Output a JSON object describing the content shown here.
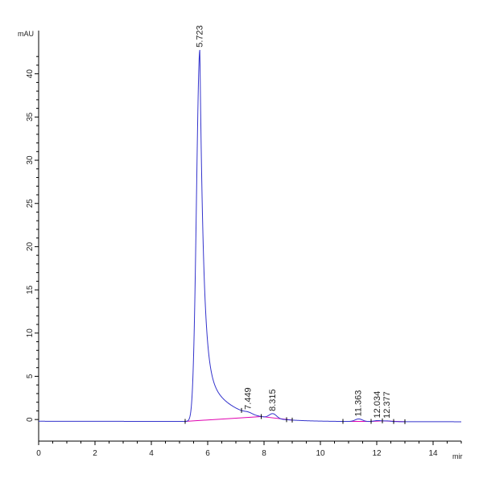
{
  "chart_data": {
    "type": "line",
    "y_unit_label": "mAU",
    "x_unit_label": "mir",
    "xlim": [
      0,
      15
    ],
    "ylim": [
      -2.5,
      45
    ],
    "x_ticks": [
      0,
      2,
      4,
      6,
      8,
      10,
      12,
      14
    ],
    "y_ticks": [
      0,
      5,
      10,
      15,
      20,
      25,
      30,
      35,
      40
    ],
    "grid": false,
    "colors": {
      "trace": "#3333cc",
      "baseline": "#e000b0",
      "axis": "#000000"
    },
    "peaks": [
      {
        "time": 5.723,
        "label": "5.723",
        "height": 43.0
      },
      {
        "time": 7.449,
        "label": "7.449",
        "height": 0.15
      },
      {
        "time": 8.315,
        "label": "8.315",
        "height": 0.55
      },
      {
        "time": 11.363,
        "label": "11.363",
        "height": 0.3
      },
      {
        "time": 12.034,
        "label": "12.034",
        "height": 0.12
      },
      {
        "time": 12.377,
        "label": "12.377",
        "height": 0.08
      }
    ],
    "integration_marks": [
      5.2,
      7.2,
      7.9,
      8.8,
      9.0,
      10.8,
      11.8,
      12.2,
      12.6,
      13.0
    ],
    "baseline_segments": [
      [
        5.2,
        7.9
      ],
      [
        7.9,
        9.0
      ],
      [
        10.8,
        11.8
      ],
      [
        11.8,
        12.2
      ],
      [
        12.2,
        13.0
      ]
    ]
  }
}
